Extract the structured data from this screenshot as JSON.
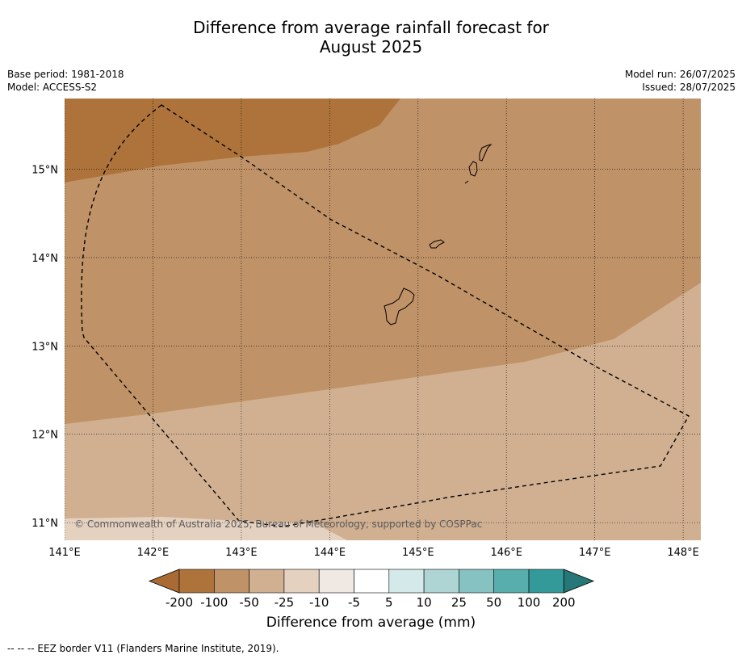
{
  "title": {
    "line1": "Difference from average rainfall forecast for",
    "line2": "August 2025"
  },
  "meta": {
    "base_period": "Base period: 1981-2018",
    "model": "Model: ACCESS-S2",
    "model_run": "Model run: 26/07/2025",
    "issued": "Issued: 28/07/2025"
  },
  "map": {
    "lon_range": [
      141.0,
      148.2
    ],
    "lat_range": [
      10.8,
      15.8
    ],
    "lon_ticks": [
      "141°E",
      "142°E",
      "143°E",
      "144°E",
      "145°E",
      "146°E",
      "147°E",
      "148°E"
    ],
    "lat_ticks": [
      "15°N",
      "14°N",
      "13°N",
      "12°N",
      "11°N"
    ],
    "copyright": "© Commonwealth of Australia 2025, Bureau of Meteorology, supported by COSPPac"
  },
  "colorbar": {
    "labels": [
      "-200",
      "-100",
      "-50",
      "-25",
      "-10",
      "-5",
      "5",
      "10",
      "25",
      "50",
      "100",
      "200"
    ],
    "colors": [
      "#a96a34",
      "#ad733a",
      "#c09268",
      "#d1b092",
      "#e5d1c0",
      "#efe8e3",
      "#ffffff",
      "#d4eaea",
      "#aed5d4",
      "#86c2c2",
      "#58adad",
      "#339999",
      "#267777"
    ],
    "title": "Difference from average (mm)"
  },
  "footnote": "--  --  -- EEZ border V11 (Flanders Marine Institute, 2019)."
}
